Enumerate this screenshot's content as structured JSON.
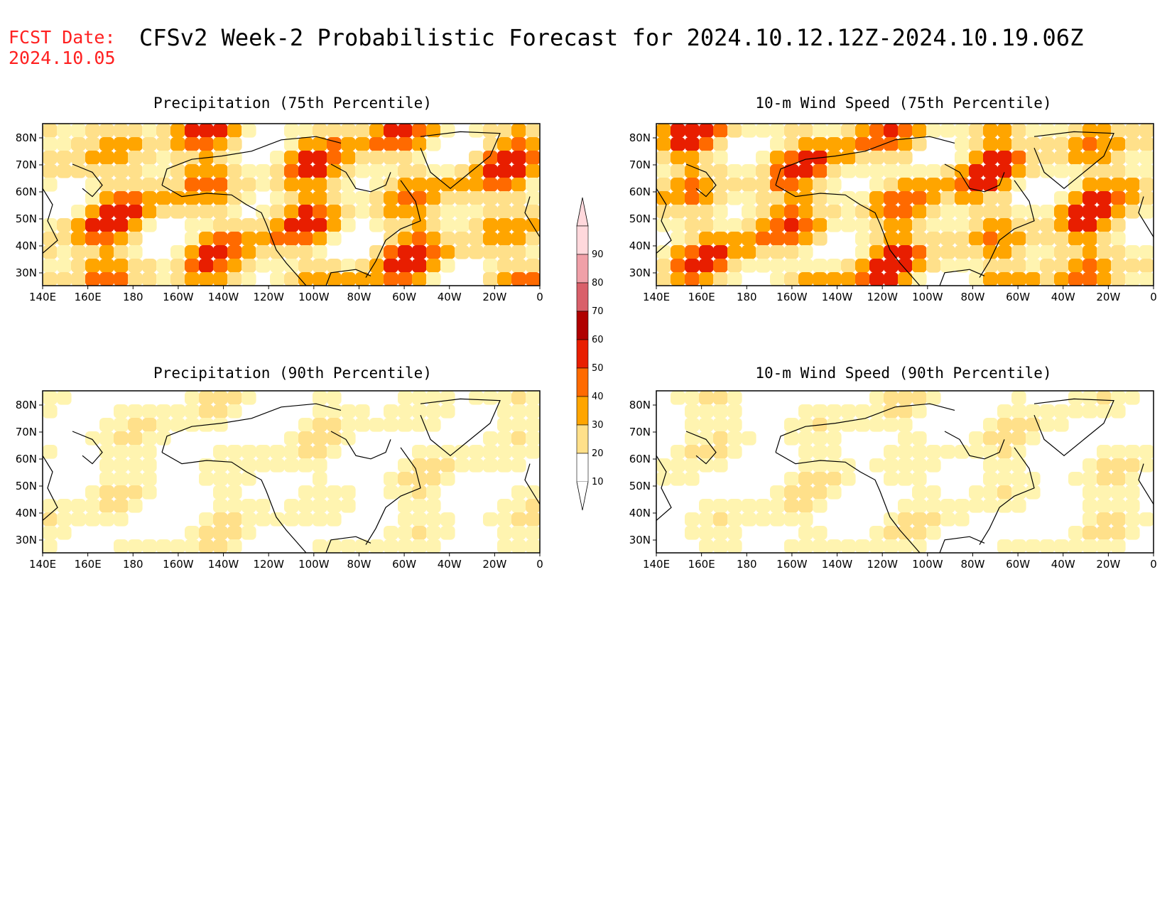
{
  "header": {
    "fcst_label_line1": "FCST Date:",
    "fcst_label_line2": "2024.10.05",
    "title": "CFSv2 Week-2 Probabilistic Forecast for 2024.10.12.12Z-2024.10.19.06Z"
  },
  "map_axes": {
    "lon_labels": [
      "140E",
      "160E",
      "180",
      "160W",
      "140W",
      "120W",
      "100W",
      "80W",
      "60W",
      "40W",
      "20W",
      "0"
    ],
    "lat_labels": [
      "80N",
      "70N",
      "60N",
      "50N",
      "40N",
      "30N"
    ]
  },
  "panels": [
    {
      "id": "precip75",
      "title": "Precipitation (75th Percentile)",
      "intensity": "high"
    },
    {
      "id": "wind75",
      "title": "10-m Wind Speed (75th Percentile)",
      "intensity": "high"
    },
    {
      "id": "precip90",
      "title": "Precipitation (90th Percentile)",
      "intensity": "low"
    },
    {
      "id": "wind90",
      "title": "10-m Wind Speed (90th Percentile)",
      "intensity": "low"
    }
  ],
  "colorbar": {
    "levels": [
      "10",
      "20",
      "30",
      "40",
      "50",
      "60",
      "70",
      "80",
      "90"
    ],
    "colors": [
      "#fff4b0",
      "#ffe08a",
      "#ffa500",
      "#ff6a00",
      "#e81e00",
      "#b00000",
      "#d9606a",
      "#f0a0a8",
      "#ffd8dc"
    ]
  }
}
